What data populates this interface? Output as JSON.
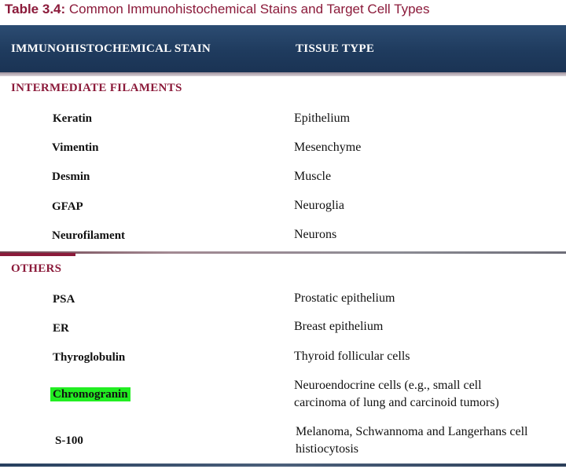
{
  "caption": {
    "number": "Table 3.4:",
    "title": "Common Immunohistochemical Stains and Target Cell Types"
  },
  "header": {
    "col1": "IMMUNOHISTOCHEMICAL STAIN",
    "col2": "TISSUE TYPE"
  },
  "sections": [
    {
      "title": "INTERMEDIATE FILAMENTS",
      "rows": [
        {
          "stain": "Keratin",
          "tissue": "Epithelium"
        },
        {
          "stain": "Vimentin",
          "tissue": "Mesenchyme"
        },
        {
          "stain": "Desmin",
          "tissue": "Muscle"
        },
        {
          "stain": "GFAP",
          "tissue": "Neuroglia"
        },
        {
          "stain": "Neurofilament",
          "tissue": "Neurons"
        }
      ]
    },
    {
      "title": "OTHERS",
      "rows": [
        {
          "stain": "PSA",
          "tissue": "Prostatic epithelium"
        },
        {
          "stain": "ER",
          "tissue": "Breast epithelium"
        },
        {
          "stain": "Thyroglobulin",
          "tissue": "Thyroid follicular cells"
        },
        {
          "stain": "Chromogranin",
          "tissue_line1": "Neuroendocrine cells (e.g., small cell",
          "tissue_line2": "carcinoma of lung and carcinoid tumors)"
        },
        {
          "stain": "S-100",
          "tissue_line1": "Melanoma, Schwannoma and Langerhans cell",
          "tissue_line2": "histiocytosis"
        }
      ]
    }
  ],
  "colors": {
    "accent": "#8b1a3a",
    "header_bg": "#1f3b5e",
    "highlight": "#22ee22"
  }
}
